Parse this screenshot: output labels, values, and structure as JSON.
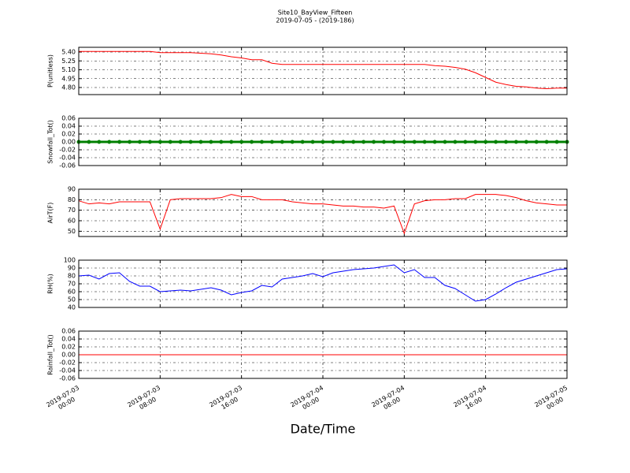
{
  "title": "Site10_BayView_Fifteen",
  "subtitle": "2019-07-05 - (2019-186)",
  "xlabel": "Date/Time",
  "x": [
    "2019-07-03 00:00",
    "2019-07-03 01:00",
    "2019-07-03 02:00",
    "2019-07-03 03:00",
    "2019-07-03 04:00",
    "2019-07-03 05:00",
    "2019-07-03 06:00",
    "2019-07-03 07:00",
    "2019-07-03 08:00",
    "2019-07-03 09:00",
    "2019-07-03 10:00",
    "2019-07-03 11:00",
    "2019-07-03 12:00",
    "2019-07-03 13:00",
    "2019-07-03 14:00",
    "2019-07-03 15:00",
    "2019-07-03 16:00",
    "2019-07-03 17:00",
    "2019-07-03 18:00",
    "2019-07-03 19:00",
    "2019-07-03 20:00",
    "2019-07-03 21:00",
    "2019-07-03 22:00",
    "2019-07-03 23:00",
    "2019-07-04 00:00",
    "2019-07-04 01:00",
    "2019-07-04 02:00",
    "2019-07-04 03:00",
    "2019-07-04 04:00",
    "2019-07-04 05:00",
    "2019-07-04 06:00",
    "2019-07-04 07:00",
    "2019-07-04 08:00",
    "2019-07-04 09:00",
    "2019-07-04 10:00",
    "2019-07-04 11:00",
    "2019-07-04 12:00",
    "2019-07-04 13:00",
    "2019-07-04 14:00",
    "2019-07-04 15:00",
    "2019-07-04 16:00",
    "2019-07-04 17:00",
    "2019-07-04 18:00",
    "2019-07-04 19:00",
    "2019-07-04 20:00",
    "2019-07-04 21:00",
    "2019-07-04 22:00",
    "2019-07-04 23:00",
    "2019-07-05 00:00"
  ],
  "xlim": [
    "2019-07-03 00:00",
    "2019-07-05 00:00"
  ],
  "xticks": [
    "2019-07-03 00:00",
    "2019-07-03 08:00",
    "2019-07-03 16:00",
    "2019-07-04 00:00",
    "2019-07-04 08:00",
    "2019-07-04 16:00",
    "2019-07-05 00:00"
  ],
  "grid": true,
  "chart_data": [
    {
      "type": "line",
      "ylabel": "P(unitless)",
      "ylim": [
        4.68,
        5.48
      ],
      "yticks": [
        {
          "value": 4.8,
          "label": "4.80"
        },
        {
          "value": 4.95,
          "label": "4.95"
        },
        {
          "value": 5.1,
          "label": "5.10"
        },
        {
          "value": 5.25,
          "label": "5.25"
        },
        {
          "value": 5.4,
          "label": "5.40"
        }
      ],
      "series": [
        {
          "color": "#ff0000",
          "values": [
            5.41,
            5.41,
            5.41,
            5.41,
            5.41,
            5.41,
            5.41,
            5.41,
            5.39,
            5.39,
            5.39,
            5.39,
            5.38,
            5.37,
            5.35,
            5.32,
            5.3,
            5.27,
            5.27,
            5.21,
            5.19,
            5.19,
            5.19,
            5.19,
            5.19,
            5.19,
            5.19,
            5.19,
            5.19,
            5.19,
            5.19,
            5.19,
            5.19,
            5.19,
            5.19,
            5.17,
            5.16,
            5.14,
            5.11,
            5.05,
            4.97,
            4.89,
            4.85,
            4.82,
            4.81,
            4.79,
            4.78,
            4.79,
            4.79
          ]
        }
      ]
    },
    {
      "type": "line",
      "ylabel": "Snowfall_Tot()",
      "ylim": [
        -0.06,
        0.06
      ],
      "yticks": [
        -0.06,
        -0.04,
        -0.02,
        {
          "value": 0,
          "label": "0.00"
        },
        0.02,
        0.04,
        0.06
      ],
      "series": [
        {
          "color": "#008000",
          "marker": "o",
          "values": [
            0,
            0,
            0,
            0,
            0,
            0,
            0,
            0,
            0,
            0,
            0,
            0,
            0,
            0,
            0,
            0,
            0,
            0,
            0,
            0,
            0,
            0,
            0,
            0,
            0,
            0,
            0,
            0,
            0,
            0,
            0,
            0,
            0,
            0,
            0,
            0,
            0,
            0,
            0,
            0,
            0,
            0,
            0,
            0,
            0,
            0,
            0,
            0,
            0
          ]
        }
      ]
    },
    {
      "type": "line",
      "ylabel": "AirT(F)",
      "ylim": [
        45,
        90
      ],
      "yticks": [
        50,
        60,
        70,
        80,
        90
      ],
      "series": [
        {
          "color": "#ff0000",
          "values": [
            79,
            76,
            77,
            76,
            78,
            78,
            78,
            78,
            52,
            80,
            81,
            81,
            81,
            81,
            82,
            85,
            83,
            83,
            80,
            80,
            80,
            78,
            77,
            76,
            76,
            75,
            74,
            74,
            73,
            73,
            72,
            74,
            48,
            76,
            79,
            80,
            80,
            81,
            81,
            85,
            85,
            85,
            84,
            82,
            79,
            77,
            76,
            75,
            75
          ]
        }
      ]
    },
    {
      "type": "line",
      "ylabel": "RH(%)",
      "ylim": [
        40,
        100
      ],
      "yticks": [
        40,
        50,
        60,
        70,
        80,
        90,
        100
      ],
      "series": [
        {
          "color": "#0000ff",
          "values": [
            80,
            81,
            76,
            83,
            84,
            73,
            67,
            67,
            60,
            61,
            62,
            61,
            63,
            65,
            62,
            56,
            59,
            61,
            68,
            66,
            76,
            78,
            80,
            83,
            79,
            84,
            86,
            88,
            89,
            90,
            92,
            94,
            84,
            88,
            78,
            78,
            68,
            64,
            56,
            48,
            50,
            57,
            65,
            72,
            76,
            80,
            84,
            88,
            89
          ]
        }
      ]
    },
    {
      "type": "line",
      "ylabel": "Rainfall_Tot()",
      "ylim": [
        -0.06,
        0.06
      ],
      "yticks": [
        -0.06,
        -0.04,
        -0.02,
        {
          "value": 0,
          "label": "0.00"
        },
        0.02,
        0.04,
        0.06
      ],
      "series": [
        {
          "color": "#ff0000",
          "values": [
            0,
            0,
            0,
            0,
            0,
            0,
            0,
            0,
            0,
            0,
            0,
            0,
            0,
            0,
            0,
            0,
            0,
            0,
            0,
            0,
            0,
            0,
            0,
            0,
            0,
            0,
            0,
            0,
            0,
            0,
            0,
            0,
            0,
            0,
            0,
            0,
            0,
            0,
            0,
            0,
            0,
            0,
            0,
            0,
            0,
            0,
            0,
            0,
            0
          ]
        }
      ]
    }
  ]
}
